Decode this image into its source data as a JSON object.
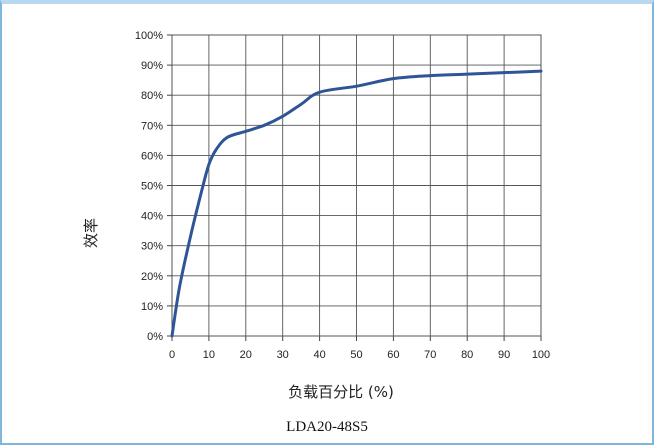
{
  "chart_data": {
    "type": "line",
    "title": "",
    "xlabel": "负载百分比 (%)",
    "ylabel": "效率",
    "caption": "LDA20-48S5",
    "xlim": [
      0,
      100
    ],
    "ylim": [
      0,
      100
    ],
    "x_ticks": [
      "0",
      "10",
      "20",
      "30",
      "40",
      "50",
      "60",
      "70",
      "80",
      "90",
      "100"
    ],
    "y_ticks": [
      "0%",
      "10%",
      "20%",
      "30%",
      "40%",
      "50%",
      "60%",
      "70%",
      "80%",
      "90%",
      "100%"
    ],
    "grid": true,
    "series": [
      {
        "color": "#2f5597",
        "x": [
          0,
          2,
          5,
          8,
          10,
          12,
          15,
          20,
          25,
          30,
          35,
          40,
          50,
          60,
          70,
          80,
          90,
          100
        ],
        "y": [
          0,
          16,
          33,
          48,
          57,
          62,
          66,
          68,
          70,
          73,
          77,
          81,
          83,
          85.5,
          86.5,
          87,
          87.5,
          88
        ]
      }
    ]
  }
}
